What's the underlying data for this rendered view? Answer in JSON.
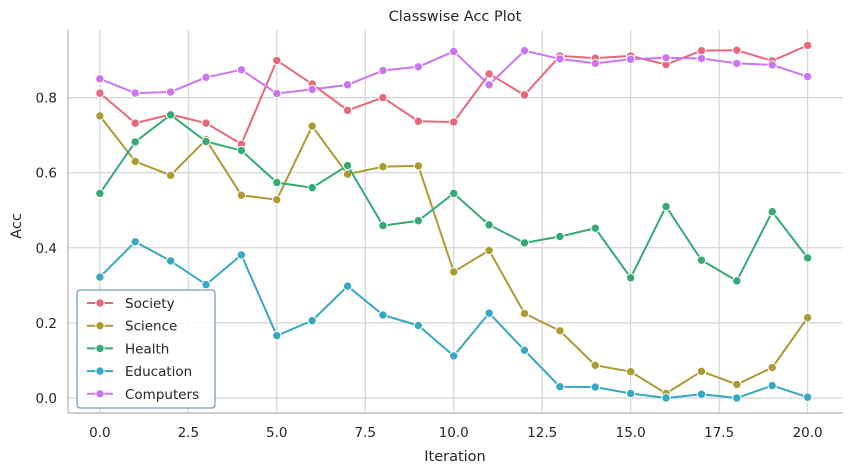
{
  "chart_data": {
    "type": "line",
    "title": "Classwise Acc Plot",
    "xlabel": "Iteration",
    "ylabel": "Acc",
    "xlim": [
      -0.9,
      21.0
    ],
    "ylim": [
      -0.04,
      0.98
    ],
    "xticks": [
      0.0,
      2.5,
      5.0,
      7.5,
      10.0,
      12.5,
      15.0,
      17.5,
      20.0
    ],
    "xtick_labels": [
      "0.0",
      "2.5",
      "5.0",
      "7.5",
      "10.0",
      "12.5",
      "15.0",
      "17.5",
      "20.0"
    ],
    "yticks": [
      0.0,
      0.2,
      0.4,
      0.6,
      0.8
    ],
    "ytick_labels": [
      "0.0",
      "0.2",
      "0.4",
      "0.6",
      "0.8"
    ],
    "grid": true,
    "legend_position": "lower-left",
    "x": [
      0,
      1,
      2,
      3,
      4,
      5,
      6,
      7,
      8,
      9,
      10,
      11,
      12,
      13,
      14,
      15,
      16,
      17,
      18,
      19,
      20
    ],
    "series": [
      {
        "name": "Society",
        "color": "#e8677a",
        "values": [
          0.812,
          0.732,
          0.755,
          0.732,
          0.676,
          0.899,
          0.836,
          0.766,
          0.8,
          0.737,
          0.735,
          0.863,
          0.807,
          0.911,
          0.905,
          0.911,
          0.888,
          0.925,
          0.926,
          0.898,
          0.939
        ]
      },
      {
        "name": "Science",
        "color": "#ad9a33",
        "values": [
          0.751,
          0.63,
          0.593,
          0.688,
          0.54,
          0.528,
          0.724,
          0.596,
          0.616,
          0.618,
          0.336,
          0.393,
          0.225,
          0.179,
          0.087,
          0.07,
          0.012,
          0.071,
          0.036,
          0.081,
          0.214
        ]
      },
      {
        "name": "Health",
        "color": "#35aa74",
        "values": [
          0.545,
          0.682,
          0.754,
          0.683,
          0.659,
          0.574,
          0.56,
          0.619,
          0.459,
          0.472,
          0.545,
          0.461,
          0.413,
          0.43,
          0.452,
          0.32,
          0.51,
          0.367,
          0.312,
          0.496,
          0.373
        ]
      },
      {
        "name": "Education",
        "color": "#36a8c3",
        "values": [
          0.322,
          0.416,
          0.365,
          0.302,
          0.381,
          0.166,
          0.206,
          0.298,
          0.221,
          0.193,
          0.112,
          0.226,
          0.127,
          0.03,
          0.029,
          0.012,
          0.0,
          0.01,
          0.0,
          0.033,
          0.002
        ]
      },
      {
        "name": "Computers",
        "color": "#cb75f0",
        "values": [
          0.85,
          0.812,
          0.815,
          0.854,
          0.874,
          0.811,
          0.822,
          0.834,
          0.872,
          0.882,
          0.923,
          0.834,
          0.925,
          0.903,
          0.891,
          0.902,
          0.906,
          0.904,
          0.891,
          0.887,
          0.856
        ]
      }
    ]
  }
}
